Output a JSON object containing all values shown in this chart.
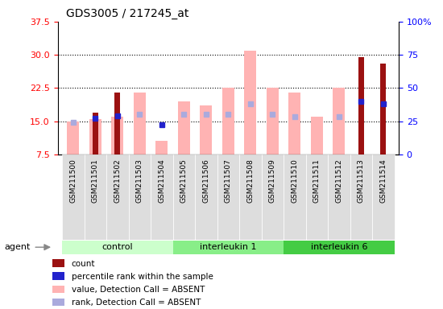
{
  "title": "GDS3005 / 217245_at",
  "samples": [
    "GSM211500",
    "GSM211501",
    "GSM211502",
    "GSM211503",
    "GSM211504",
    "GSM211505",
    "GSM211506",
    "GSM211507",
    "GSM211508",
    "GSM211509",
    "GSM211510",
    "GSM211511",
    "GSM211512",
    "GSM211513",
    "GSM211514"
  ],
  "groups": [
    {
      "name": "control",
      "start": 0,
      "end": 5
    },
    {
      "name": "interleukin 1",
      "start": 5,
      "end": 10
    },
    {
      "name": "interleukin 6",
      "start": 10,
      "end": 15
    }
  ],
  "group_colors": [
    "#ccffcc",
    "#88ee88",
    "#44cc44"
  ],
  "red_bars": [
    null,
    17.0,
    21.5,
    null,
    null,
    null,
    null,
    null,
    null,
    null,
    null,
    null,
    null,
    29.5,
    28.0
  ],
  "pink_bars": [
    15.0,
    15.5,
    16.0,
    21.5,
    10.5,
    19.5,
    18.5,
    22.5,
    31.0,
    22.5,
    21.5,
    16.0,
    22.5,
    null,
    null
  ],
  "blue_squares": [
    null,
    15.7,
    16.2,
    null,
    14.3,
    null,
    null,
    null,
    null,
    null,
    null,
    null,
    null,
    19.5,
    19.0
  ],
  "lavender_squares": [
    14.8,
    null,
    null,
    16.5,
    null,
    16.5,
    16.5,
    16.5,
    19.0,
    16.5,
    16.0,
    null,
    16.0,
    null,
    null
  ],
  "ylim_left": [
    7.5,
    37.5
  ],
  "ylim_right": [
    0,
    100
  ],
  "yticks_left": [
    7.5,
    15.0,
    22.5,
    30.0,
    37.5
  ],
  "yticks_right": [
    0,
    25,
    50,
    75,
    100
  ],
  "red_color": "#9b1111",
  "pink_color": "#ffb3b3",
  "blue_color": "#2222cc",
  "lavender_color": "#aaaadd",
  "background_color": "#ffffff",
  "tick_label_bg": "#dddddd",
  "legend_labels": [
    "count",
    "percentile rank within the sample",
    "value, Detection Call = ABSENT",
    "rank, Detection Call = ABSENT"
  ]
}
